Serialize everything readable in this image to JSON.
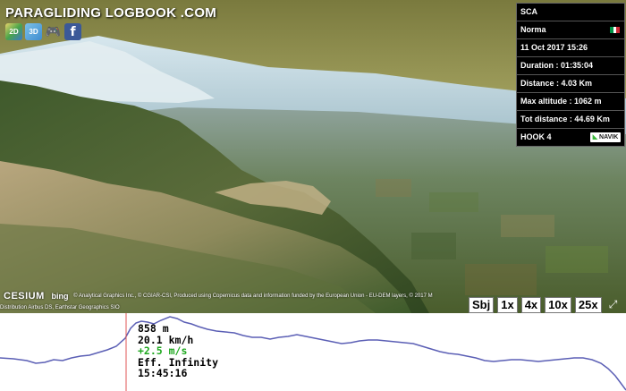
{
  "site": {
    "title": "PARAGLIDING LOGBOOK .COM"
  },
  "toolbar": {
    "items": [
      {
        "name": "map-2d",
        "label": "2D",
        "icon": "map-2d-icon"
      },
      {
        "name": "view-3d",
        "label": "3D",
        "icon": "globe-3d-icon"
      },
      {
        "name": "game",
        "label": "",
        "icon": "gamepad-icon"
      },
      {
        "name": "facebook",
        "label": "f",
        "icon": "facebook-icon"
      }
    ]
  },
  "flight_info": {
    "pilot": "SCA",
    "wing": "Norma",
    "flag_colors": [
      "#009246",
      "#ffffff",
      "#ce2b37"
    ],
    "date": "11 Oct 2017 15:26",
    "duration": "Duration : 01:35:04",
    "distance": "Distance : 4.03 Km",
    "max_altitude": "Max altitude : 1062 m",
    "tot_distance": "Tot distance : 44.69 Km",
    "device": "HOOK 4",
    "brand_logo": "NAVIK"
  },
  "credits": {
    "cesium": "CESIUM",
    "bing": "bing",
    "line1": "© Analytical Graphics Inc., © CGIAR-CSI, Produced using Copernicus data and information funded by the European Union - EU-DEM layers, © 2017 M",
    "line2": "Distribution Airbus DS, Earthstar Geographics SIO"
  },
  "playback": {
    "buttons": [
      "Sbj",
      "1x",
      "4x",
      "10x",
      "25x"
    ],
    "fullscreen_icon": "fullscreen-icon"
  },
  "profile_readout": {
    "altitude": "858 m",
    "speed": "20.1 km/h",
    "vario": "+2.5 m/s",
    "efficiency": "Eff. Infinity",
    "time": "15:45:16"
  },
  "colors": {
    "profile_line": "#5b5fb5",
    "cursor_line": "#e05555",
    "vario_positive": "#1fa81f"
  }
}
